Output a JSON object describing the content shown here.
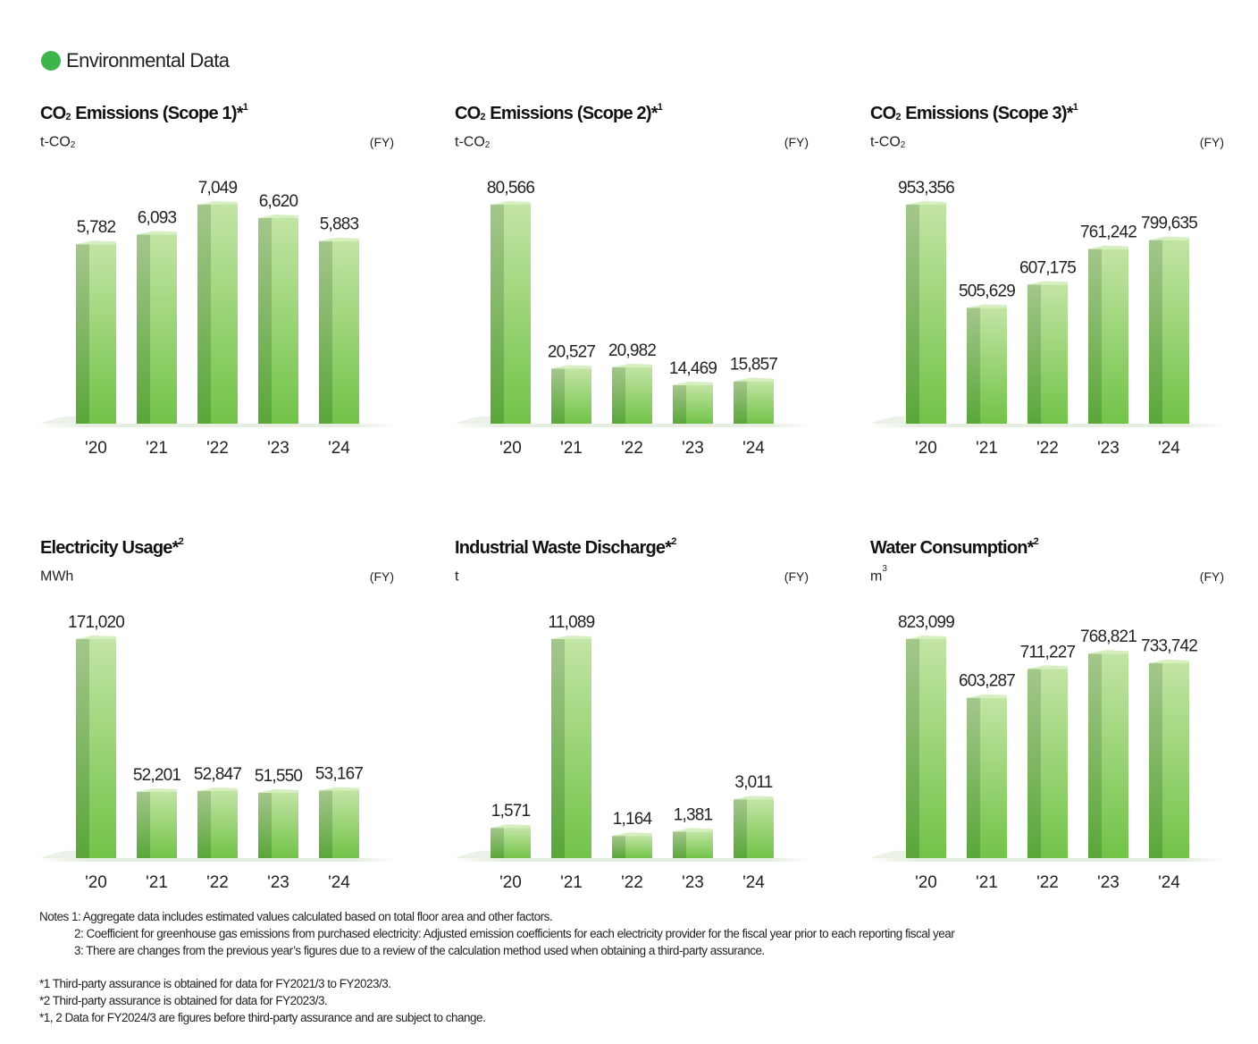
{
  "header": {
    "title": "Environmental Data",
    "dot_color": "#3db54a"
  },
  "fy_label": "(FY)",
  "colors": {
    "bar_front_top": "#c2e4a4",
    "bar_front_bottom": "#72c348",
    "bar_side_top": "#a4c68c",
    "bar_side_bottom": "#5aa63a",
    "bar_top": "#d5efc0"
  },
  "chart_data": [
    {
      "type": "bar",
      "title": "CO₂ Emissions (Scope 1)*¹",
      "title_parts": {
        "pre": "CO",
        "sub": "2",
        "post": " Emissions (Scope 1)*",
        "sup": "1"
      },
      "unit_parts": {
        "pre": "t-CO",
        "sub": "2",
        "sup": ""
      },
      "categories": [
        "'20",
        "'21",
        "'22",
        "'23",
        "'24"
      ],
      "values": [
        5782,
        6093,
        7049,
        6620,
        5883
      ],
      "value_labels": [
        "5,782",
        "6,093",
        "7,049",
        "6,620",
        "5,883"
      ]
    },
    {
      "type": "bar",
      "title": "CO₂ Emissions (Scope 2)*¹",
      "title_parts": {
        "pre": "CO",
        "sub": "2",
        "post": " Emissions (Scope 2)*",
        "sup": "1"
      },
      "unit_parts": {
        "pre": "t-CO",
        "sub": "2",
        "sup": ""
      },
      "categories": [
        "'20",
        "'21",
        "'22",
        "'23",
        "'24"
      ],
      "values": [
        80566,
        20527,
        20982,
        14469,
        15857
      ],
      "value_labels": [
        "80,566",
        "20,527",
        "20,982",
        "14,469",
        "15,857"
      ]
    },
    {
      "type": "bar",
      "title": "CO₂ Emissions (Scope 3)*¹",
      "title_parts": {
        "pre": "CO",
        "sub": "2",
        "post": " Emissions (Scope 3)*",
        "sup": "1"
      },
      "unit_parts": {
        "pre": "t-CO",
        "sub": "2",
        "sup": ""
      },
      "categories": [
        "'20",
        "'21",
        "'22",
        "'23",
        "'24"
      ],
      "values": [
        953356,
        505629,
        607175,
        761242,
        799635
      ],
      "value_labels": [
        "953,356",
        "505,629",
        "607,175",
        "761,242",
        "799,635"
      ]
    },
    {
      "type": "bar",
      "title": "Electricity Usage*²",
      "title_parts": {
        "pre": "Electricity Usage*",
        "sub": "",
        "post": "",
        "sup": "2"
      },
      "unit_parts": {
        "pre": "MWh",
        "sub": "",
        "sup": ""
      },
      "categories": [
        "'20",
        "'21",
        "'22",
        "'23",
        "'24"
      ],
      "values": [
        171020,
        52201,
        52847,
        51550,
        53167
      ],
      "value_labels": [
        "171,020",
        "52,201",
        "52,847",
        "51,550",
        "53,167"
      ]
    },
    {
      "type": "bar",
      "title": "Industrial Waste Discharge*²",
      "title_parts": {
        "pre": "Industrial Waste Discharge*",
        "sub": "",
        "post": "",
        "sup": "2"
      },
      "unit_parts": {
        "pre": "t",
        "sub": "",
        "sup": ""
      },
      "categories": [
        "'20",
        "'21",
        "'22",
        "'23",
        "'24"
      ],
      "values": [
        1571,
        11089,
        1164,
        1381,
        3011
      ],
      "value_labels": [
        "1,571",
        "11,089",
        "1,164",
        "1,381",
        "3,011"
      ]
    },
    {
      "type": "bar",
      "title": "Water Consumption*²",
      "title_parts": {
        "pre": "Water Consumption*",
        "sub": "",
        "post": "",
        "sup": "2"
      },
      "unit_parts": {
        "pre": "m",
        "sub": "",
        "sup": "3"
      },
      "categories": [
        "'20",
        "'21",
        "'22",
        "'23",
        "'24"
      ],
      "values": [
        823099,
        603287,
        711227,
        768821,
        733742
      ],
      "value_labels": [
        "823,099",
        "603,287",
        "711,227",
        "768,821",
        "733,742"
      ]
    }
  ],
  "notes": {
    "lines": [
      "Notes 1: Aggregate data includes estimated values calculated based on total floor area and other factors.",
      "2: Coefficient for greenhouse gas emissions from purchased electricity: Adjusted emission coefficients for each electricity provider for the fiscal year prior to each reporting fiscal year",
      "3: There are changes from the previous year’s figures due to a review of the calculation method used when obtaining a third-party assurance."
    ],
    "footnotes": [
      "*1 Third-party assurance is obtained for data for FY2021/3 to FY2023/3.",
      "*2 Third-party assurance is obtained for data for FY2023/3.",
      "*1, 2 Data for FY2024/3 are figures before third-party assurance and are subject to change."
    ]
  }
}
